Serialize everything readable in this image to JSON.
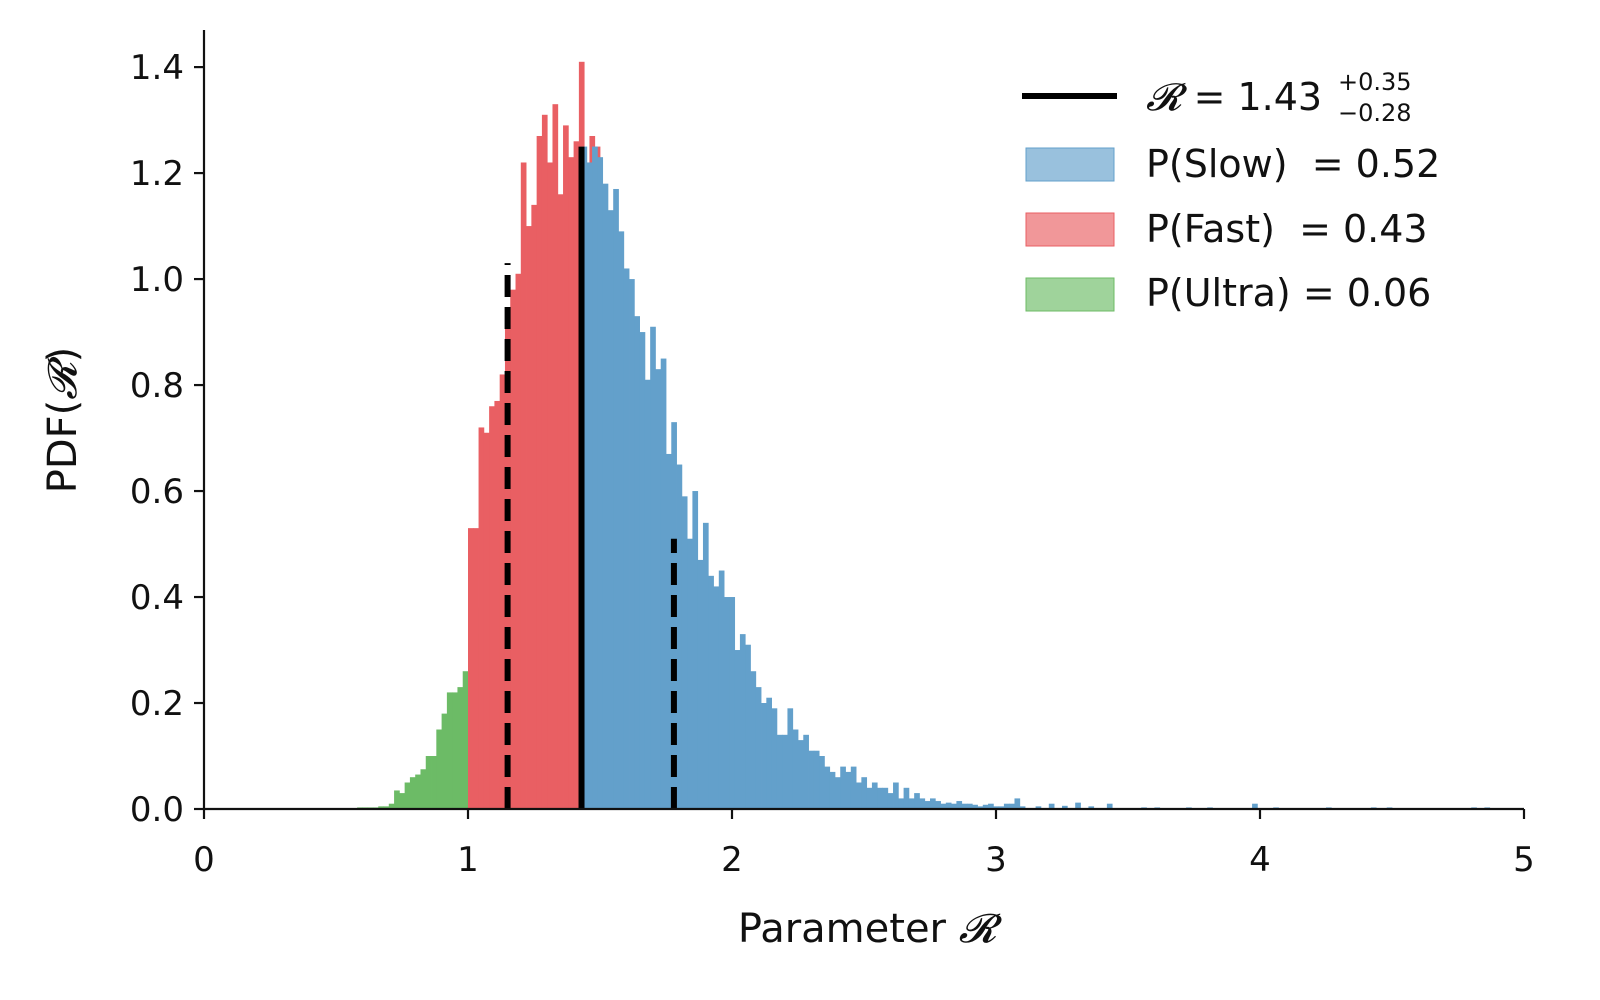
{
  "chart_data": {
    "type": "bar",
    "xlabel_prefix": "Parameter ",
    "xlabel_symbol": "𝓡",
    "ylabel_prefix": "PDF(",
    "ylabel_symbol": "𝓡",
    "ylabel_suffix": ")",
    "xlim": [
      0,
      5
    ],
    "ylim": [
      0,
      1.47
    ],
    "xticks": [
      0,
      1,
      2,
      3,
      4,
      5
    ],
    "xtick_labels": [
      "0",
      "1",
      "2",
      "3",
      "4",
      "5"
    ],
    "yticks": [
      0.0,
      0.2,
      0.4,
      0.6,
      0.8,
      1.0,
      1.2,
      1.4
    ],
    "ytick_labels": [
      "0.0",
      "0.2",
      "0.4",
      "0.6",
      "0.8",
      "1.0",
      "1.2",
      "1.4"
    ],
    "grid": false,
    "legend_position": "top-right",
    "colors": {
      "ultra": "#6cbb66",
      "fast": "#e95f63",
      "slow": "#63a0cb",
      "median_line": "#000000"
    },
    "median": 1.43,
    "median_label": {
      "symbol": "𝓡",
      "eq": " = 1.43",
      "sup": "+0.35",
      "sub": "−0.28"
    },
    "interval_lower": 1.15,
    "interval_upper": 1.78,
    "interval_lower_height": 1.03,
    "interval_upper_height": 0.51,
    "median_height": 1.25,
    "series": [
      {
        "name": "P(Ultra)",
        "label": "P(Ultra) = 0.06",
        "color": "#6cbb66",
        "bins": [
          [
            0.58,
            0.003
          ],
          [
            0.6,
            0.003
          ],
          [
            0.62,
            0.003
          ],
          [
            0.64,
            0.003
          ],
          [
            0.66,
            0.005
          ],
          [
            0.68,
            0.005
          ],
          [
            0.7,
            0.01
          ],
          [
            0.72,
            0.035
          ],
          [
            0.74,
            0.03
          ],
          [
            0.76,
            0.05
          ],
          [
            0.78,
            0.06
          ],
          [
            0.8,
            0.065
          ],
          [
            0.82,
            0.075
          ],
          [
            0.84,
            0.1
          ],
          [
            0.86,
            0.1
          ],
          [
            0.88,
            0.15
          ],
          [
            0.9,
            0.18
          ],
          [
            0.92,
            0.22
          ],
          [
            0.94,
            0.22
          ],
          [
            0.96,
            0.23
          ],
          [
            0.98,
            0.26
          ],
          [
            1.0,
            0.31
          ],
          [
            1.02,
            0.33
          ],
          [
            1.04,
            0.38
          ],
          [
            1.06,
            0.32
          ],
          [
            1.08,
            0.46
          ],
          [
            1.1,
            0.43
          ]
        ]
      },
      {
        "name": "P(Fast)",
        "label": "P(Fast)  = 0.43",
        "color": "#e95f63",
        "bins": [
          [
            1.0,
            0.53
          ],
          [
            1.02,
            0.53
          ],
          [
            1.04,
            0.72
          ],
          [
            1.06,
            0.71
          ],
          [
            1.08,
            0.76
          ],
          [
            1.1,
            0.77
          ],
          [
            1.12,
            0.82
          ],
          [
            1.14,
            0.92
          ],
          [
            1.16,
            0.98
          ],
          [
            1.18,
            1.01
          ],
          [
            1.2,
            1.22
          ],
          [
            1.22,
            1.1
          ],
          [
            1.24,
            1.14
          ],
          [
            1.26,
            1.27
          ],
          [
            1.28,
            1.31
          ],
          [
            1.3,
            1.22
          ],
          [
            1.32,
            1.33
          ],
          [
            1.34,
            1.16
          ],
          [
            1.36,
            1.29
          ],
          [
            1.38,
            1.23
          ],
          [
            1.4,
            1.26
          ],
          [
            1.42,
            1.41
          ],
          [
            1.44,
            1.22
          ],
          [
            1.46,
            1.27
          ],
          [
            1.48,
            1.25
          ]
        ]
      },
      {
        "name": "P(Slow)",
        "label": "P(Slow)  = 0.52",
        "color": "#63a0cb",
        "bins": [
          [
            1.43,
            1.25
          ],
          [
            1.45,
            1.22
          ],
          [
            1.47,
            1.25
          ],
          [
            1.49,
            1.23
          ],
          [
            1.51,
            1.18
          ],
          [
            1.53,
            1.13
          ],
          [
            1.55,
            1.17
          ],
          [
            1.57,
            1.09
          ],
          [
            1.59,
            1.02
          ],
          [
            1.61,
            1.0
          ],
          [
            1.63,
            0.93
          ],
          [
            1.65,
            0.9
          ],
          [
            1.67,
            0.81
          ],
          [
            1.69,
            0.91
          ],
          [
            1.71,
            0.83
          ],
          [
            1.73,
            0.85
          ],
          [
            1.75,
            0.67
          ],
          [
            1.77,
            0.73
          ],
          [
            1.79,
            0.65
          ],
          [
            1.81,
            0.59
          ],
          [
            1.83,
            0.51
          ],
          [
            1.85,
            0.6
          ],
          [
            1.87,
            0.47
          ],
          [
            1.89,
            0.54
          ],
          [
            1.91,
            0.44
          ],
          [
            1.93,
            0.42
          ],
          [
            1.95,
            0.45
          ],
          [
            1.97,
            0.4
          ],
          [
            1.99,
            0.4
          ],
          [
            2.01,
            0.3
          ],
          [
            2.03,
            0.33
          ],
          [
            2.05,
            0.31
          ],
          [
            2.07,
            0.26
          ],
          [
            2.09,
            0.23
          ],
          [
            2.11,
            0.2
          ],
          [
            2.13,
            0.21
          ],
          [
            2.15,
            0.19
          ],
          [
            2.17,
            0.14
          ],
          [
            2.19,
            0.14
          ],
          [
            2.21,
            0.19
          ],
          [
            2.23,
            0.15
          ],
          [
            2.25,
            0.13
          ],
          [
            2.27,
            0.14
          ],
          [
            2.29,
            0.11
          ],
          [
            2.31,
            0.11
          ],
          [
            2.33,
            0.1
          ],
          [
            2.35,
            0.08
          ],
          [
            2.37,
            0.07
          ],
          [
            2.39,
            0.06
          ],
          [
            2.41,
            0.08
          ],
          [
            2.43,
            0.07
          ],
          [
            2.45,
            0.08
          ],
          [
            2.47,
            0.05
          ],
          [
            2.49,
            0.06
          ],
          [
            2.51,
            0.04
          ],
          [
            2.53,
            0.05
          ],
          [
            2.55,
            0.04
          ],
          [
            2.57,
            0.04
          ],
          [
            2.59,
            0.03
          ],
          [
            2.61,
            0.05
          ],
          [
            2.63,
            0.02
          ],
          [
            2.65,
            0.04
          ],
          [
            2.67,
            0.02
          ],
          [
            2.69,
            0.03
          ],
          [
            2.71,
            0.02
          ],
          [
            2.73,
            0.015
          ],
          [
            2.75,
            0.02
          ],
          [
            2.77,
            0.015
          ],
          [
            2.79,
            0.01
          ],
          [
            2.81,
            0.012
          ],
          [
            2.83,
            0.01
          ],
          [
            2.85,
            0.015
          ],
          [
            2.87,
            0.01
          ],
          [
            2.89,
            0.01
          ],
          [
            2.91,
            0.008
          ],
          [
            2.93,
            0.005
          ],
          [
            2.95,
            0.008
          ],
          [
            2.97,
            0.01
          ],
          [
            2.99,
            0.005
          ],
          [
            3.01,
            0.005
          ],
          [
            3.03,
            0.01
          ],
          [
            3.05,
            0.01
          ],
          [
            3.07,
            0.02
          ],
          [
            3.09,
            0.005
          ],
          [
            3.15,
            0.005
          ],
          [
            3.2,
            0.01
          ],
          [
            3.25,
            0.006
          ],
          [
            3.3,
            0.012
          ],
          [
            3.35,
            0.005
          ],
          [
            3.42,
            0.01
          ],
          [
            3.55,
            0.003
          ],
          [
            3.6,
            0.003
          ],
          [
            3.72,
            0.003
          ],
          [
            3.8,
            0.003
          ],
          [
            3.97,
            0.01
          ],
          [
            4.05,
            0.003
          ],
          [
            4.25,
            0.003
          ],
          [
            4.42,
            0.003
          ],
          [
            4.48,
            0.003
          ],
          [
            4.8,
            0.003
          ],
          [
            4.85,
            0.003
          ]
        ]
      }
    ],
    "legend_order": [
      "median",
      "P(Slow)",
      "P(Fast)",
      "P(Ultra)"
    ]
  }
}
